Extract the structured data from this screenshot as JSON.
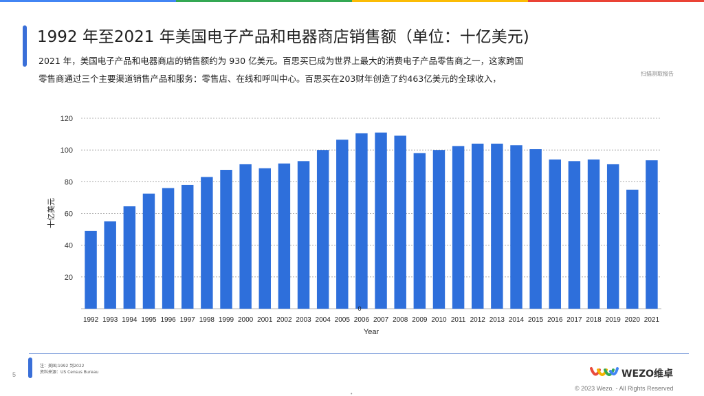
{
  "slide": {
    "title": "1992 年至2021 年美国电子产品和电器商店销售额（单位：十亿美元)",
    "subtitle_line1": "2021 年，美国电子产品和电器商店的销售额约为 930 亿美元。百思买已成为世界上最大的消费电子产品零售商之一，这家跨国",
    "subtitle_line2": "零售商通过三个主要渠道销售产品和服务：零售店、在线和呼叫中心。百思买在203财年创造了约463亿美元的全球收入，",
    "corner_note": "扫描测取报告",
    "page_number": "5",
    "footnote_line1": "注：美国;1992 到2022",
    "footnote_line2": "资料来源：US Census Bureau",
    "bottom_dot": "•",
    "logo_text": "WEZO维卓",
    "copyright": "© 2023 Wezo. - All Rights Reserved",
    "topbar_colors": [
      "#4285f4",
      "#34a853",
      "#fbbc05",
      "#ea4335"
    ],
    "accent_color": "#3a6fd8"
  },
  "chart_data": {
    "type": "bar",
    "xlabel": "Year",
    "ylabel": "十亿美元",
    "ylim": [
      0,
      120
    ],
    "yticks": [
      20,
      40,
      60,
      80,
      100,
      120
    ],
    "zero_label": "0",
    "grid": true,
    "bar_color": "#2e6fdb",
    "categories": [
      "1992",
      "1993",
      "1994",
      "1995",
      "1996",
      "1997",
      "1998",
      "1999",
      "2000",
      "2001",
      "2002",
      "2003",
      "2004",
      "2005",
      "2006",
      "2007",
      "2008",
      "2009",
      "2010",
      "2011",
      "2012",
      "2013",
      "2014",
      "2015",
      "2016",
      "2017",
      "2018",
      "2019",
      "2020",
      "2021"
    ],
    "values": [
      49,
      55,
      64.5,
      72.5,
      76,
      78,
      83,
      87.5,
      91,
      88.5,
      91.5,
      93,
      100,
      106.5,
      110.5,
      111,
      109,
      98,
      100,
      102.5,
      104,
      104,
      103,
      100.5,
      94,
      93,
      94,
      91,
      75,
      93.5
    ]
  }
}
